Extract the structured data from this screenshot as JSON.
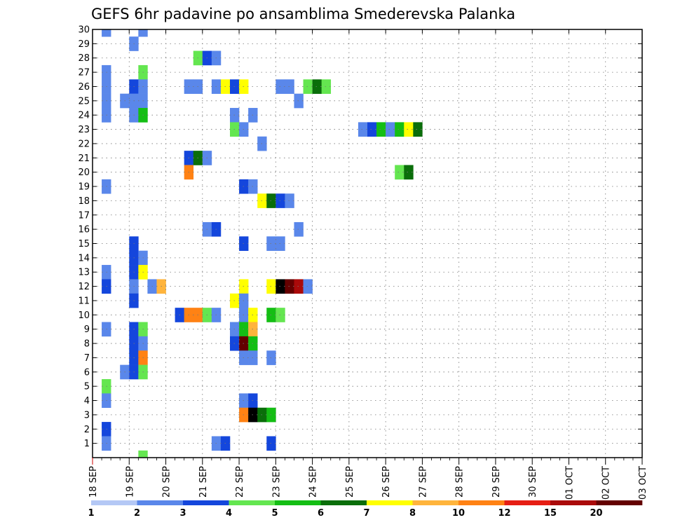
{
  "chart_data": {
    "type": "heatmap",
    "title": "GEFS 6hr padavine po ansamblima Smederevska Palanka",
    "xlabel": "",
    "ylabel": "",
    "x_tick_labels": [
      "18 SEP",
      "19 SEP",
      "20 SEP",
      "21 SEP",
      "22 SEP",
      "23 SEP",
      "24 SEP",
      "25 SEP",
      "26 SEP",
      "27 SEP",
      "28 SEP",
      "29 SEP",
      "30 SEP",
      "01 OCT",
      "02 OCT",
      "03 OCT"
    ],
    "y_tick_labels": [
      "1",
      "2",
      "3",
      "4",
      "5",
      "6",
      "7",
      "8",
      "9",
      "10",
      "11",
      "12",
      "13",
      "14",
      "15",
      "16",
      "17",
      "18",
      "19",
      "20",
      "21",
      "22",
      "23",
      "24",
      "25",
      "26",
      "27",
      "28",
      "29",
      "30"
    ],
    "xlim_steps": [
      0,
      60
    ],
    "ylim_members": [
      0,
      30
    ],
    "grid": true,
    "legend_position": "bottom",
    "colorbar": {
      "labels": [
        "1",
        "2",
        "3",
        "4",
        "5",
        "6",
        "7",
        "8",
        "10",
        "12",
        "15",
        "20"
      ],
      "colors": [
        "#b4c8f5",
        "#5a87ea",
        "#1446dc",
        "#64e650",
        "#14be14",
        "#0a6e0a",
        "#ffff00",
        "#ffb43c",
        "#ff8214",
        "#e61e14",
        "#aa0a0a",
        "#640000"
      ]
    },
    "cells": [
      [
        1,
        30,
        1
      ],
      [
        5,
        30,
        1
      ],
      [
        4,
        29,
        1
      ],
      [
        11,
        28,
        3
      ],
      [
        12,
        28,
        2
      ],
      [
        13,
        28,
        1
      ],
      [
        1,
        27,
        1
      ],
      [
        5,
        27,
        3
      ],
      [
        1,
        26,
        1
      ],
      [
        4,
        26,
        2
      ],
      [
        5,
        26,
        1
      ],
      [
        10,
        26,
        1
      ],
      [
        11,
        26,
        1
      ],
      [
        13,
        26,
        1
      ],
      [
        14,
        26,
        6
      ],
      [
        15,
        26,
        2
      ],
      [
        16,
        26,
        6
      ],
      [
        20,
        26,
        1
      ],
      [
        21,
        26,
        1
      ],
      [
        23,
        26,
        3
      ],
      [
        24,
        26,
        5
      ],
      [
        25,
        26,
        3
      ],
      [
        1,
        25,
        1
      ],
      [
        3,
        25,
        1
      ],
      [
        4,
        25,
        1
      ],
      [
        5,
        25,
        1
      ],
      [
        22,
        25,
        1
      ],
      [
        1,
        24,
        1
      ],
      [
        4,
        24,
        1
      ],
      [
        5,
        24,
        4
      ],
      [
        15,
        24,
        1
      ],
      [
        17,
        24,
        1
      ],
      [
        15,
        23,
        3
      ],
      [
        16,
        23,
        1
      ],
      [
        29,
        23,
        1
      ],
      [
        30,
        23,
        2
      ],
      [
        31,
        23,
        4
      ],
      [
        32,
        23,
        1
      ],
      [
        33,
        23,
        4
      ],
      [
        34,
        23,
        6
      ],
      [
        35,
        23,
        5
      ],
      [
        18,
        22,
        1
      ],
      [
        10,
        21,
        2
      ],
      [
        11,
        21,
        5
      ],
      [
        12,
        21,
        1
      ],
      [
        10,
        20,
        8
      ],
      [
        33,
        20,
        3
      ],
      [
        34,
        20,
        5
      ],
      [
        1,
        19,
        1
      ],
      [
        16,
        19,
        2
      ],
      [
        17,
        19,
        1
      ],
      [
        18,
        18,
        6
      ],
      [
        19,
        18,
        5
      ],
      [
        20,
        18,
        2
      ],
      [
        21,
        18,
        1
      ],
      [
        12,
        16,
        1
      ],
      [
        13,
        16,
        2
      ],
      [
        22,
        16,
        1
      ],
      [
        4,
        15,
        2
      ],
      [
        16,
        15,
        2
      ],
      [
        19,
        15,
        1
      ],
      [
        20,
        15,
        1
      ],
      [
        4,
        14,
        2
      ],
      [
        5,
        14,
        1
      ],
      [
        1,
        13,
        1
      ],
      [
        4,
        13,
        2
      ],
      [
        5,
        13,
        6
      ],
      [
        1,
        12,
        2
      ],
      [
        4,
        12,
        1
      ],
      [
        6,
        12,
        1
      ],
      [
        7,
        12,
        7
      ],
      [
        16,
        12,
        6
      ],
      [
        19,
        12,
        6
      ],
      [
        20,
        12,
        12
      ],
      [
        21,
        12,
        11
      ],
      [
        22,
        12,
        10
      ],
      [
        23,
        12,
        1
      ],
      [
        4,
        11,
        2
      ],
      [
        15,
        11,
        6
      ],
      [
        16,
        11,
        1
      ],
      [
        9,
        10,
        2
      ],
      [
        10,
        10,
        8
      ],
      [
        11,
        10,
        8
      ],
      [
        12,
        10,
        3
      ],
      [
        13,
        10,
        1
      ],
      [
        16,
        10,
        1
      ],
      [
        17,
        10,
        6
      ],
      [
        19,
        10,
        4
      ],
      [
        20,
        10,
        3
      ],
      [
        1,
        9,
        1
      ],
      [
        4,
        9,
        2
      ],
      [
        5,
        9,
        3
      ],
      [
        15,
        9,
        1
      ],
      [
        16,
        9,
        4
      ],
      [
        17,
        9,
        7
      ],
      [
        4,
        8,
        2
      ],
      [
        5,
        8,
        1
      ],
      [
        15,
        8,
        2
      ],
      [
        16,
        8,
        11
      ],
      [
        17,
        8,
        4
      ],
      [
        4,
        7,
        2
      ],
      [
        5,
        7,
        8
      ],
      [
        16,
        7,
        1
      ],
      [
        17,
        7,
        1
      ],
      [
        19,
        7,
        1
      ],
      [
        3,
        6,
        1
      ],
      [
        4,
        6,
        2
      ],
      [
        5,
        6,
        3
      ],
      [
        1,
        5,
        3
      ],
      [
        1,
        4,
        1
      ],
      [
        16,
        4,
        1
      ],
      [
        17,
        4,
        2
      ],
      [
        16,
        3,
        8
      ],
      [
        17,
        3,
        12
      ],
      [
        18,
        3,
        5
      ],
      [
        19,
        3,
        4
      ],
      [
        1,
        2,
        2
      ],
      [
        1,
        1,
        1
      ],
      [
        13,
        1,
        1
      ],
      [
        14,
        1,
        2
      ],
      [
        19,
        1,
        2
      ],
      [
        5,
        0,
        3
      ]
    ]
  }
}
